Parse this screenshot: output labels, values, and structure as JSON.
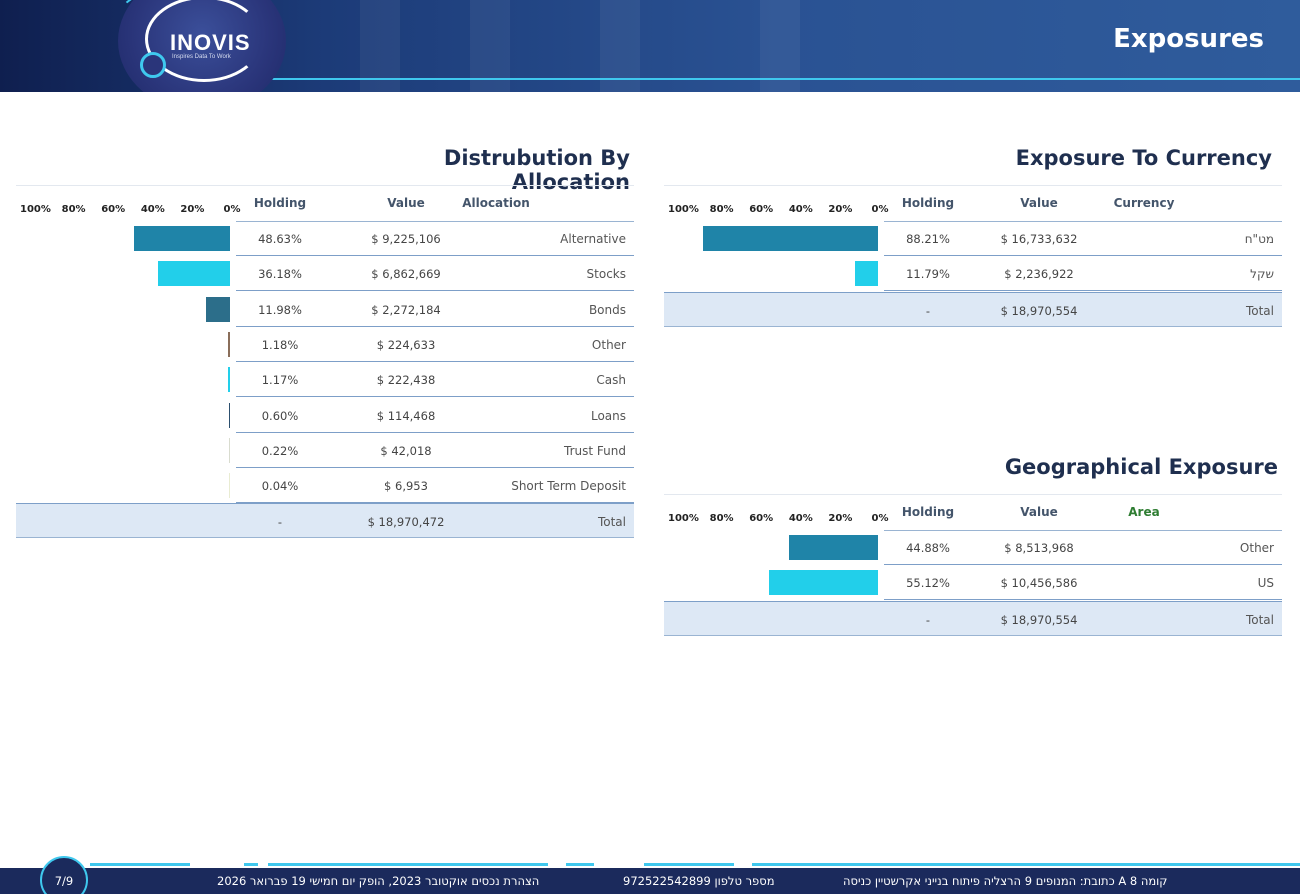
{
  "header": {
    "title": "Exposures",
    "logo_text": "INOVIS",
    "logo_tagline": "Inspires Data To Work"
  },
  "axis_ticks": [
    "100%",
    "80%",
    "60%",
    "40%",
    "20%",
    "0%"
  ],
  "colors": {
    "dark_teal": "#1f84a8",
    "cyan": "#22cfea",
    "slate": "#2c6e8a",
    "brown": "#8a6e5a",
    "olive": "#b8b06a",
    "pale": "#e9ecd2",
    "total_bg": "#dde8f5"
  },
  "allocation": {
    "title": "Distrubution By Allocation",
    "headers": {
      "holding": "Holding",
      "value": "Value",
      "name": "Allocation"
    },
    "rows": [
      {
        "holding_pct": 48.63,
        "holding": "48.63%",
        "value": "$ 9,225,106",
        "name": "Alternative",
        "color": "#1f84a8"
      },
      {
        "holding_pct": 36.18,
        "holding": "36.18%",
        "value": "$ 6,862,669",
        "name": "Stocks",
        "color": "#22cfea"
      },
      {
        "holding_pct": 11.98,
        "holding": "11.98%",
        "value": "$ 2,272,184",
        "name": "Bonds",
        "color": "#2c6e8a"
      },
      {
        "holding_pct": 1.18,
        "holding": "1.18%",
        "value": "$ 224,633",
        "name": "Other",
        "color": "#8a6e5a"
      },
      {
        "holding_pct": 1.17,
        "holding": "1.17%",
        "value": "$ 222,438",
        "name": "Cash",
        "color": "#22cfea"
      },
      {
        "holding_pct": 0.6,
        "holding": "0.60%",
        "value": "$ 114,468",
        "name": "Loans",
        "color": "#2c4f6e"
      },
      {
        "holding_pct": 0.22,
        "holding": "0.22%",
        "value": "$ 42,018",
        "name": "Trust Fund",
        "color": "#d9dccf"
      },
      {
        "holding_pct": 0.04,
        "holding": "0.04%",
        "value": "$ 6,953",
        "name": "Short Term Deposit",
        "color": "#e9ecd2"
      }
    ],
    "total": {
      "holding": "-",
      "value": "$ 18,970,472",
      "name": "Total"
    }
  },
  "currency": {
    "title": "Exposure To Currency",
    "headers": {
      "holding": "Holding",
      "value": "Value",
      "name": "Currency"
    },
    "rows": [
      {
        "holding_pct": 88.21,
        "holding": "88.21%",
        "value": "$ 16,733,632",
        "name": "מט\"ח",
        "color": "#1f84a8"
      },
      {
        "holding_pct": 11.79,
        "holding": "11.79%",
        "value": "$ 2,236,922",
        "name": "שקל",
        "color": "#22cfea"
      }
    ],
    "total": {
      "holding": "-",
      "value": "$ 18,970,554",
      "name": "Total"
    }
  },
  "geo": {
    "title": "Geographical Exposure",
    "headers": {
      "holding": "Holding",
      "value": "Value",
      "name": "Area"
    },
    "rows": [
      {
        "holding_pct": 44.88,
        "holding": "44.88%",
        "value": "$ 8,513,968",
        "name": "Other",
        "color": "#1f84a8"
      },
      {
        "holding_pct": 55.12,
        "holding": "55.12%",
        "value": "$ 10,456,586",
        "name": "US",
        "color": "#22cfea"
      }
    ],
    "total": {
      "holding": "-",
      "value": "$ 18,970,554",
      "name": "Total"
    }
  },
  "footer": {
    "page": "7/9",
    "declaration": "הצהרת נכסים אוקטובר 2023, הופק יום חמישי 19 פברואר 2026",
    "phone": "מספר טלפון 972522542899",
    "address": "כתובת: המנופים 9 הרצליה פיתוח בנייני אקרשטיין כניסה A קומה 8"
  }
}
